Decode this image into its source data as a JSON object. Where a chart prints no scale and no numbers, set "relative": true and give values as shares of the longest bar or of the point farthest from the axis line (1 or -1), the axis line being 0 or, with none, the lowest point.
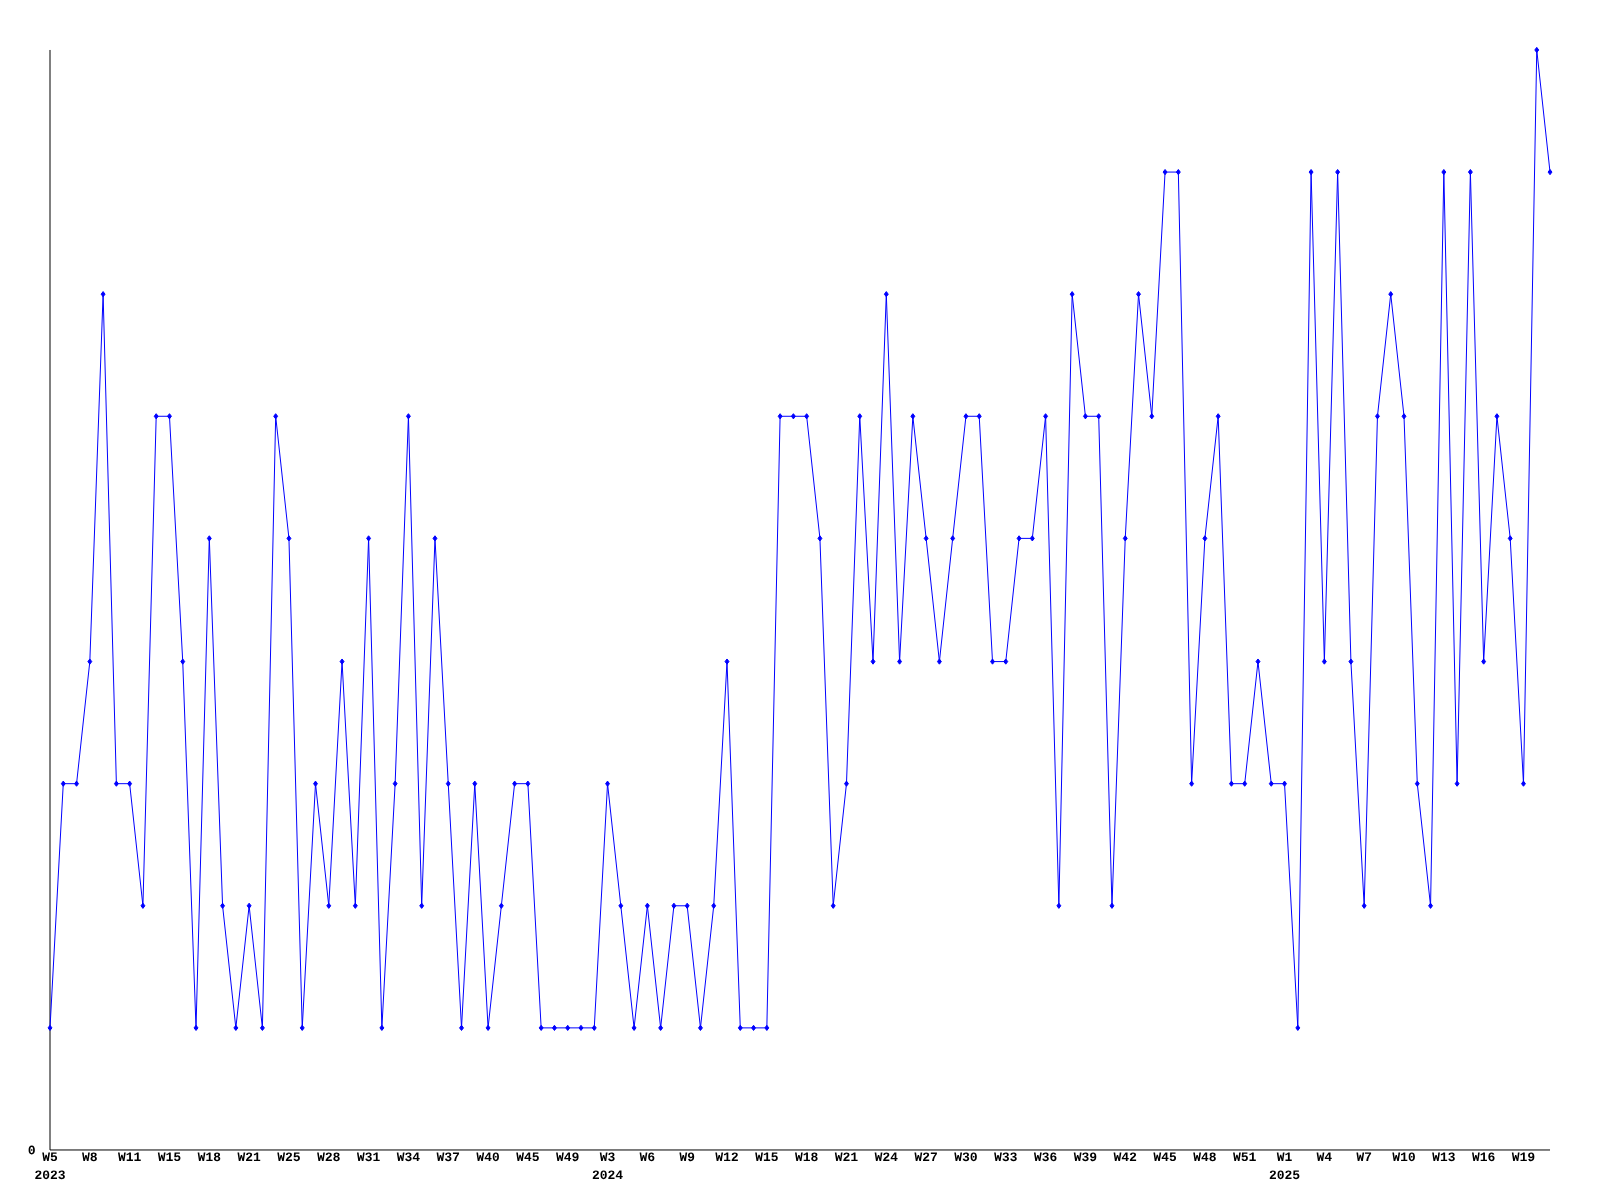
{
  "chart_data": {
    "type": "line",
    "relative": true,
    "color": "#0000ff",
    "marker": "diamond",
    "line_style": "solid",
    "grid": false,
    "categories": [
      "W5",
      null,
      null,
      "W8",
      null,
      null,
      "W11",
      null,
      null,
      "W15",
      null,
      null,
      "W18",
      null,
      null,
      "W21",
      null,
      null,
      "W25",
      null,
      null,
      "W28",
      null,
      null,
      "W31",
      null,
      null,
      "W34",
      null,
      null,
      "W37",
      null,
      null,
      "W40",
      null,
      null,
      "W45",
      null,
      null,
      "W49",
      null,
      null,
      "W3",
      null,
      null,
      "W6",
      null,
      null,
      "W9",
      null,
      null,
      "W12",
      null,
      null,
      "W15",
      null,
      null,
      "W18",
      null,
      null,
      "W21",
      null,
      null,
      "W24",
      null,
      null,
      "W27",
      null,
      null,
      "W30",
      null,
      null,
      "W33",
      null,
      null,
      "W36",
      null,
      null,
      "W39",
      null,
      null,
      "W42",
      null,
      null,
      "W45",
      null,
      null,
      "W48",
      null,
      null,
      "W51",
      null,
      null,
      "W1",
      null,
      null,
      "W4",
      null,
      null,
      "W7",
      null,
      null,
      "W10",
      null,
      null,
      "W13",
      null,
      null,
      "W16",
      null,
      null,
      "W19",
      null,
      null
    ],
    "values": [
      0.111,
      0.333,
      0.333,
      0.444,
      0.778,
      0.333,
      0.333,
      0.222,
      0.667,
      0.667,
      0.444,
      0.111,
      0.556,
      0.222,
      0.111,
      0.222,
      0.111,
      0.667,
      0.556,
      0.111,
      0.333,
      0.222,
      0.444,
      0.222,
      0.556,
      0.111,
      0.333,
      0.667,
      0.222,
      0.556,
      0.333,
      0.111,
      0.333,
      0.111,
      0.222,
      0.333,
      0.333,
      0.111,
      0.111,
      0.111,
      0.111,
      0.111,
      0.333,
      0.222,
      0.111,
      0.222,
      0.111,
      0.222,
      0.222,
      0.111,
      0.222,
      0.444,
      0.111,
      0.111,
      0.111,
      0.667,
      0.667,
      0.667,
      0.556,
      0.222,
      0.333,
      0.667,
      0.444,
      0.778,
      0.444,
      0.667,
      0.556,
      0.444,
      0.556,
      0.667,
      0.667,
      0.444,
      0.444,
      0.556,
      0.556,
      0.667,
      0.222,
      0.778,
      0.667,
      0.667,
      0.222,
      0.556,
      0.778,
      0.667,
      0.889,
      0.889,
      0.333,
      0.556,
      0.667,
      0.333,
      0.333,
      0.444,
      0.333,
      0.333,
      0.111,
      0.889,
      0.444,
      0.889,
      0.444,
      0.222,
      0.667,
      0.778,
      0.667,
      0.333,
      0.222,
      0.889,
      0.333,
      0.889,
      0.444,
      0.667,
      0.556,
      0.333,
      1,
      0.889
    ],
    "annotations": [
      "0",
      "2023",
      "2024",
      "2025"
    ]
  }
}
